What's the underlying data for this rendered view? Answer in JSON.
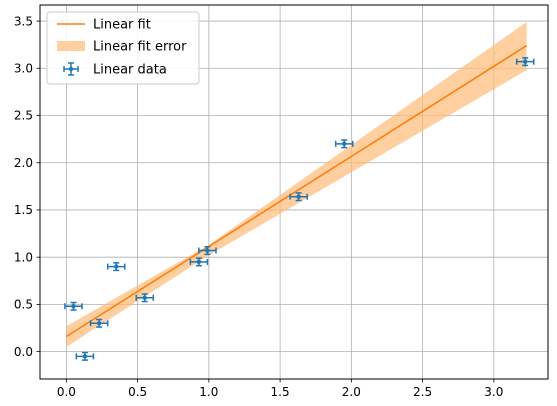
{
  "chart_data": {
    "type": "scatter",
    "title": "",
    "xlabel": "",
    "ylabel": "",
    "xlim": [
      -0.185,
      3.38
    ],
    "ylim": [
      -0.29,
      3.67
    ],
    "x_ticks": [
      0.0,
      0.5,
      1.0,
      1.5,
      2.0,
      2.5,
      3.0
    ],
    "y_ticks": [
      0.0,
      0.5,
      1.0,
      1.5,
      2.0,
      2.5,
      3.0,
      3.5
    ],
    "x_tick_labels": [
      "0.0",
      "0.5",
      "1.0",
      "1.5",
      "2.0",
      "2.5",
      "3.0"
    ],
    "y_tick_labels": [
      "0.0",
      "0.5",
      "1.0",
      "1.5",
      "2.0",
      "2.5",
      "3.0",
      "3.5"
    ],
    "grid": true,
    "legend_position": "top-left",
    "series": [
      {
        "name": "Linear fit",
        "kind": "line",
        "color": "#ff7f0e",
        "x": [
          0.0,
          3.23
        ],
        "y": [
          0.16,
          3.24
        ]
      },
      {
        "name": "Linear fit error",
        "kind": "band",
        "color": "#ffbb78",
        "x": [
          0.0,
          1.0,
          3.23
        ],
        "y_low": [
          0.05,
          1.02,
          2.98
        ],
        "y_high": [
          0.27,
          1.13,
          3.49
        ]
      },
      {
        "name": "Linear data",
        "kind": "errorbar",
        "color": "#1f77b4",
        "points": [
          {
            "x": 0.05,
            "y": 0.48,
            "xerr": 0.06,
            "yerr": 0.04
          },
          {
            "x": 0.13,
            "y": -0.05,
            "xerr": 0.06,
            "yerr": 0.04
          },
          {
            "x": 0.23,
            "y": 0.3,
            "xerr": 0.06,
            "yerr": 0.04
          },
          {
            "x": 0.35,
            "y": 0.9,
            "xerr": 0.06,
            "yerr": 0.04
          },
          {
            "x": 0.55,
            "y": 0.57,
            "xerr": 0.06,
            "yerr": 0.04
          },
          {
            "x": 0.93,
            "y": 0.95,
            "xerr": 0.06,
            "yerr": 0.04
          },
          {
            "x": 0.99,
            "y": 1.07,
            "xerr": 0.06,
            "yerr": 0.04
          },
          {
            "x": 1.63,
            "y": 1.64,
            "xerr": 0.06,
            "yerr": 0.04
          },
          {
            "x": 1.95,
            "y": 2.2,
            "xerr": 0.06,
            "yerr": 0.04
          },
          {
            "x": 3.22,
            "y": 3.07,
            "xerr": 0.06,
            "yerr": 0.04
          }
        ]
      }
    ]
  }
}
